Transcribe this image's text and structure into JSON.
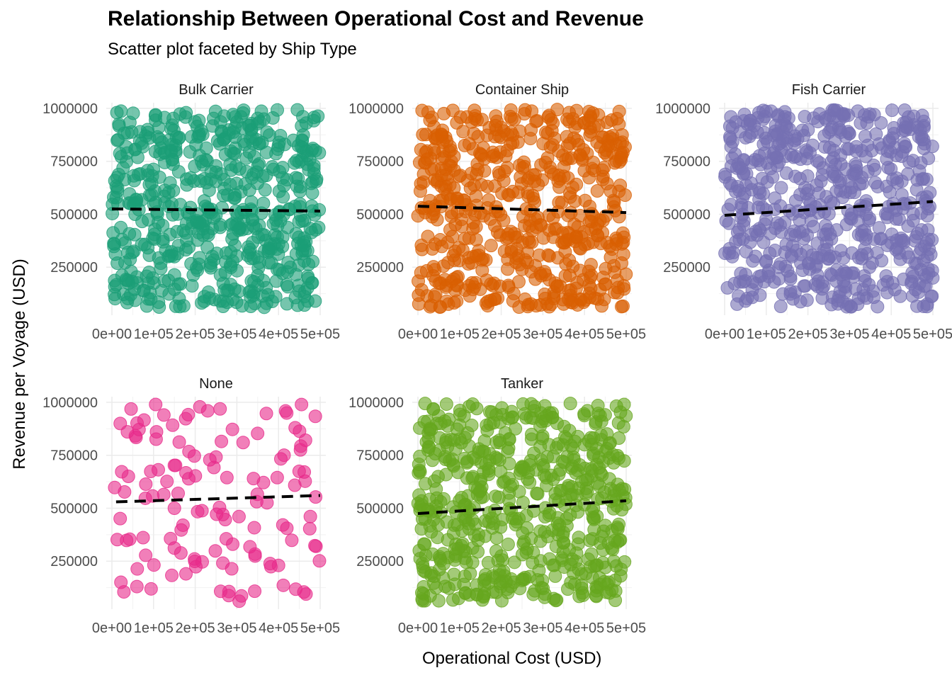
{
  "chart_data": {
    "type": "scatter",
    "title": "Relationship Between Operational Cost and Revenue",
    "subtitle": "Scatter plot faceted by Ship Type",
    "xlabel": "Operational Cost (USD)",
    "ylabel": "Revenue per Voyage (USD)",
    "xlim": [
      0,
      500000
    ],
    "ylim": [
      50000,
      1000000
    ],
    "x_ticks": [
      0,
      100000,
      200000,
      300000,
      400000,
      500000
    ],
    "x_tick_labels": [
      "0e+00",
      "1e+05",
      "2e+05",
      "3e+05",
      "4e+05",
      "5e+05"
    ],
    "y_ticks": [
      250000,
      500000,
      750000,
      1000000
    ],
    "y_tick_labels": [
      "250000",
      "500000",
      "750000",
      "1000000"
    ],
    "grid": true,
    "trend_line": "dashed black linear fit per panel",
    "facets": [
      {
        "name": "Bulk Carrier",
        "color": "#1B9E77",
        "n_points": 600,
        "trend": [
          [
            0,
            525000
          ],
          [
            500000,
            515000
          ]
        ],
        "points_sample": [
          [
            12000,
            980000
          ],
          [
            45000,
            120000
          ],
          [
            90000,
            640000
          ],
          [
            150000,
            300000
          ],
          [
            210000,
            870000
          ],
          [
            260000,
            450000
          ],
          [
            310000,
            960000
          ],
          [
            350000,
            210000
          ],
          [
            410000,
            720000
          ],
          [
            470000,
            90000
          ]
        ]
      },
      {
        "name": "Container Ship",
        "color": "#D95F02",
        "n_points": 600,
        "trend": [
          [
            0,
            538000
          ],
          [
            500000,
            508000
          ]
        ],
        "points_sample": [
          [
            10000,
            990000
          ],
          [
            40000,
            110000
          ],
          [
            95000,
            560000
          ],
          [
            140000,
            380000
          ],
          [
            200000,
            910000
          ],
          [
            250000,
            240000
          ],
          [
            320000,
            700000
          ],
          [
            380000,
            150000
          ],
          [
            430000,
            840000
          ],
          [
            490000,
            360000
          ]
        ]
      },
      {
        "name": "Fish Carrier",
        "color": "#7570B3",
        "n_points": 600,
        "trend": [
          [
            0,
            495000
          ],
          [
            500000,
            560000
          ]
        ],
        "points_sample": [
          [
            15000,
            960000
          ],
          [
            50000,
            90000
          ],
          [
            100000,
            520000
          ],
          [
            160000,
            780000
          ],
          [
            220000,
            260000
          ],
          [
            270000,
            990000
          ],
          [
            330000,
            420000
          ],
          [
            390000,
            130000
          ],
          [
            440000,
            690000
          ],
          [
            495000,
            310000
          ]
        ]
      },
      {
        "name": "None",
        "color": "#E7298A",
        "n_points": 130,
        "trend": [
          [
            10000,
            530000
          ],
          [
            500000,
            560000
          ]
        ],
        "points_sample": [
          [
            20000,
            900000
          ],
          [
            60000,
            130000
          ],
          [
            105000,
            990000
          ],
          [
            150000,
            500000
          ],
          [
            230000,
            960000
          ],
          [
            290000,
            330000
          ],
          [
            340000,
            640000
          ],
          [
            400000,
            230000
          ],
          [
            440000,
            880000
          ],
          [
            490000,
            320000
          ]
        ]
      },
      {
        "name": "Tanker",
        "color": "#66A61E",
        "n_points": 600,
        "trend": [
          [
            0,
            475000
          ],
          [
            500000,
            535000
          ]
        ],
        "points_sample": [
          [
            10000,
            70000
          ],
          [
            55000,
            900000
          ],
          [
            110000,
            300000
          ],
          [
            170000,
            660000
          ],
          [
            230000,
            150000
          ],
          [
            280000,
            980000
          ],
          [
            340000,
            420000
          ],
          [
            400000,
            800000
          ],
          [
            450000,
            220000
          ],
          [
            495000,
            990000
          ]
        ]
      }
    ]
  }
}
